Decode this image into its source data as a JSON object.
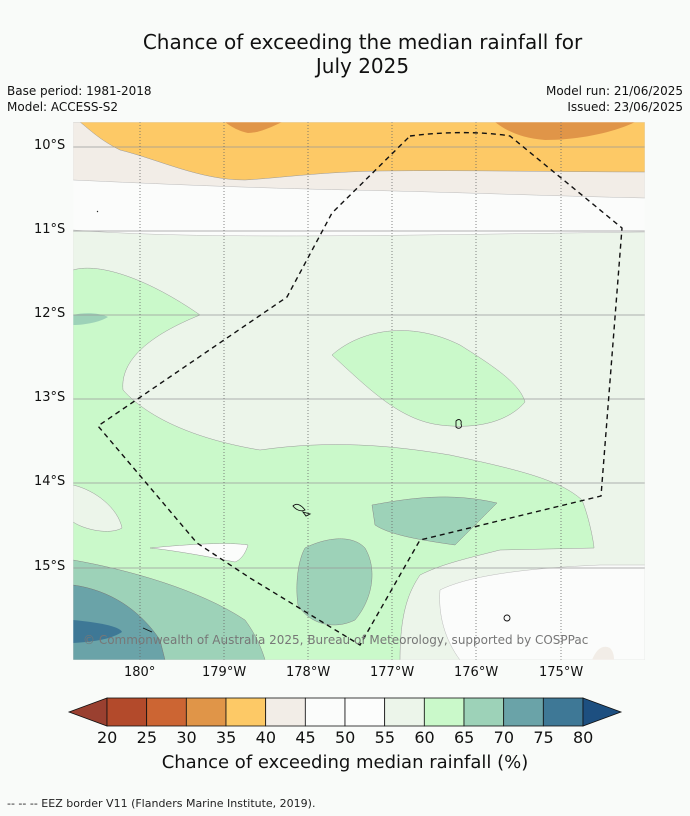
{
  "title_line1": "Chance of exceeding the median rainfall for",
  "title_line2": "July 2025",
  "base_period": "Base period: 1981-2018",
  "model": "Model: ACCESS-S2",
  "model_run": "Model run: 21/06/2025",
  "issued": "Issued: 23/06/2025",
  "lat_labels": [
    "10°S",
    "11°S",
    "12°S",
    "13°S",
    "14°S",
    "15°S"
  ],
  "lon_labels": [
    "180°",
    "179°W",
    "178°W",
    "177°W",
    "176°W",
    "175°W"
  ],
  "copyright": "© Commonwealth of Australia 2025, Bureau of Meteorology, supported by COSPPac",
  "colorbar": {
    "ticks": [
      "20",
      "25",
      "30",
      "35",
      "40",
      "45",
      "50",
      "55",
      "60",
      "65",
      "70",
      "75",
      "80"
    ],
    "colors": [
      "#9a4030",
      "#b34a2b",
      "#cc6533",
      "#e09548",
      "#fdc966",
      "#f2ede7",
      "#fbfcfb",
      "#fcfdfc",
      "#ecf5ea",
      "#caf9ca",
      "#9dd2b8",
      "#6aa3a8",
      "#3e7896",
      "#1d4f80"
    ],
    "title": "Chance of exceeding median rainfall (%)"
  },
  "legend_footer": "-- -- -- EEZ border V11 (Flanders Marine Institute, 2019)."
}
